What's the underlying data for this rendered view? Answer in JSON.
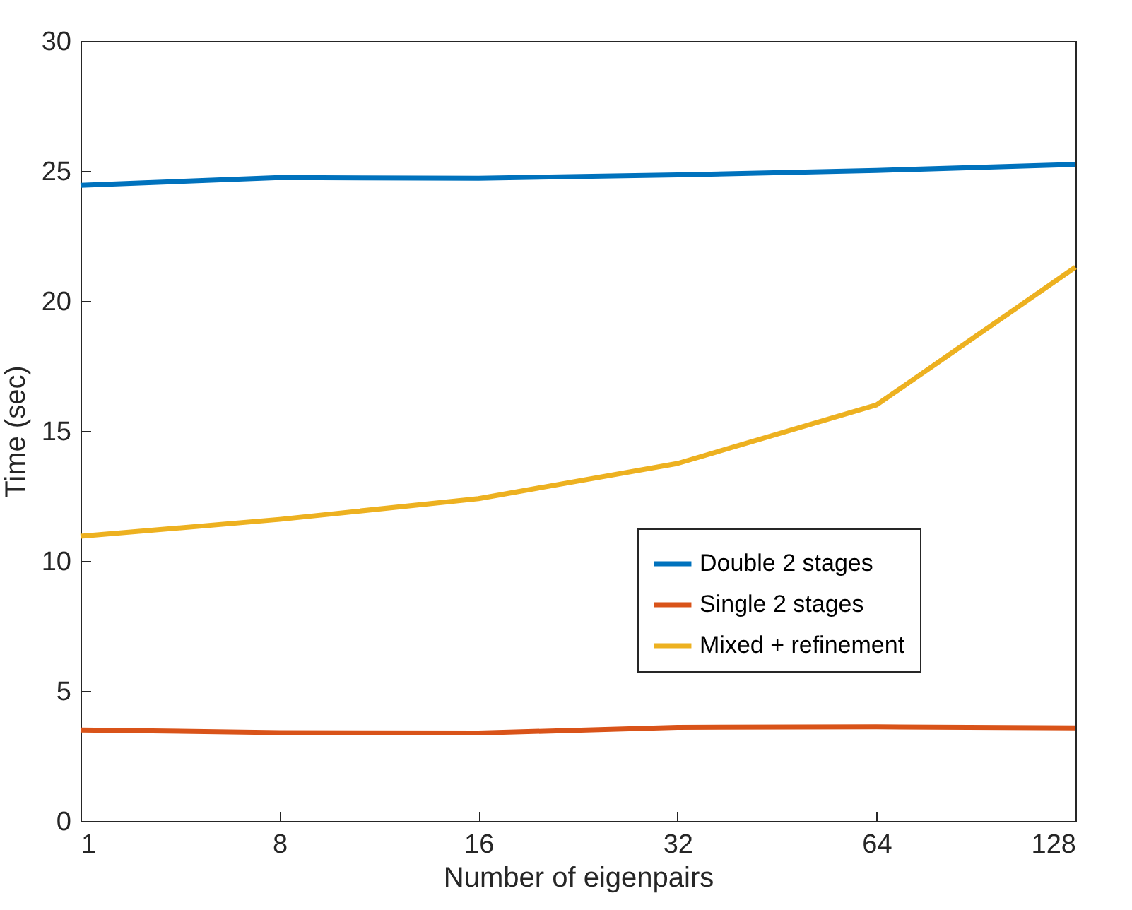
{
  "chart_data": {
    "type": "line",
    "xlabel": "Number of eigenpairs",
    "ylabel": "Time (sec)",
    "categories": [
      "1",
      "8",
      "16",
      "32",
      "64",
      "128"
    ],
    "ylim": [
      0,
      30
    ],
    "yticks": [
      0,
      5,
      10,
      15,
      20,
      25,
      30
    ],
    "series": [
      {
        "name": "Double 2 stages",
        "color": "#0072bd",
        "values": [
          24.45,
          24.75,
          24.72,
          24.85,
          25.02,
          25.25
        ]
      },
      {
        "name": "Single 2 stages",
        "color": "#d95319",
        "values": [
          3.5,
          3.4,
          3.38,
          3.6,
          3.62,
          3.58
        ]
      },
      {
        "name": "Mixed + refinement",
        "color": "#edb120",
        "values": [
          10.95,
          11.6,
          12.4,
          13.75,
          16.0,
          21.3
        ]
      }
    ],
    "legend": "right",
    "grid": false,
    "line_style": "solid",
    "marker": "none"
  }
}
